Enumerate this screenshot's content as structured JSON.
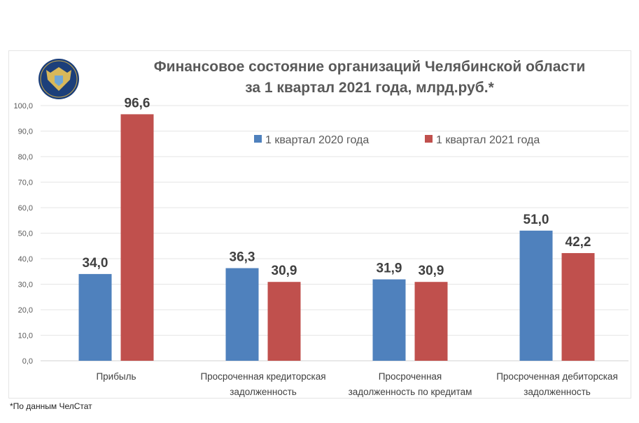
{
  "chart_data": {
    "type": "bar",
    "title": [
      "Финансовое состояние организаций Челябинской области",
      "за 1 квартал 2021 года, млрд.руб.*"
    ],
    "categories": [
      [
        "Прибыль"
      ],
      [
        "Просроченная кредиторская",
        "задолженность"
      ],
      [
        "Просроченная",
        "задолженность по кредитам"
      ],
      [
        "Просроченная дебиторская",
        "задолженность"
      ]
    ],
    "series": [
      {
        "name": "1 квартал 2020 года",
        "color": "#4f81bd",
        "values": [
          34.0,
          36.3,
          31.9,
          51.0
        ],
        "labels": [
          "34,0",
          "36,3",
          "31,9",
          "51,0"
        ]
      },
      {
        "name": "1 квартал 2021 года",
        "color": "#c0504d",
        "values": [
          96.6,
          30.9,
          30.9,
          42.2
        ],
        "labels": [
          "96,6",
          "30,9",
          "30,9",
          "42,2"
        ]
      }
    ],
    "ylim": [
      0,
      100
    ],
    "yticks": [
      "0,0",
      "10,0",
      "20,0",
      "30,0",
      "40,0",
      "50,0",
      "60,0",
      "70,0",
      "80,0",
      "90,0",
      "100,0"
    ],
    "grid": true,
    "legend": "top-center",
    "xlabel": "",
    "ylabel": ""
  },
  "footnote": "*По данным ЧелСтат"
}
